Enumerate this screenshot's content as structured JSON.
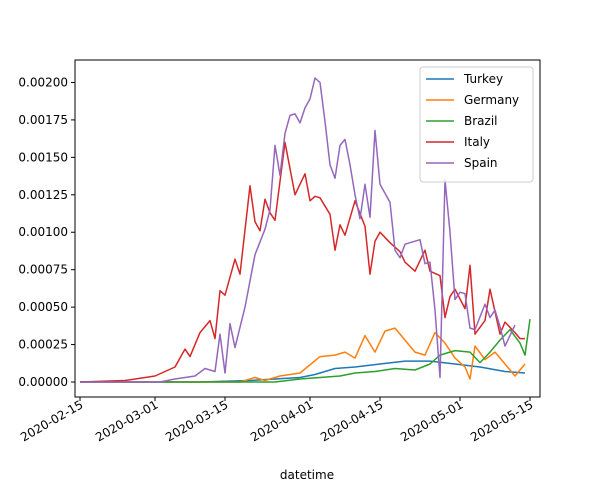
{
  "chart_data": {
    "type": "line",
    "title": "",
    "xlabel": "datetime",
    "ylabel": "",
    "x_range": [
      "2020-02-14",
      "2020-05-17"
    ],
    "ylim": [
      -0.0001,
      0.00215
    ],
    "x_ticks": [
      "2020-02-15",
      "2020-03-01",
      "2020-03-15",
      "2020-04-01",
      "2020-04-15",
      "2020-05-01",
      "2020-05-15"
    ],
    "y_ticks": [
      "0.00000",
      "0.00025",
      "0.00050",
      "0.00075",
      "0.00100",
      "0.00125",
      "0.00150",
      "0.00175",
      "0.00200"
    ],
    "grid": false,
    "legend_position": "top-right",
    "series": [
      {
        "name": "Turkey",
        "color": "#1f77b4",
        "points": [
          [
            "2020-02-15",
            0.0
          ],
          [
            "2020-03-10",
            0.0
          ],
          [
            "2020-03-20",
            1e-05
          ],
          [
            "2020-03-25",
            2e-05
          ],
          [
            "2020-03-30",
            3e-05
          ],
          [
            "2020-04-02",
            5e-05
          ],
          [
            "2020-04-06",
            9e-05
          ],
          [
            "2020-04-10",
            0.0001
          ],
          [
            "2020-04-15",
            0.00012
          ],
          [
            "2020-04-20",
            0.00014
          ],
          [
            "2020-04-25",
            0.00014
          ],
          [
            "2020-04-30",
            0.00012
          ],
          [
            "2020-05-05",
            0.0001
          ],
          [
            "2020-05-10",
            7e-05
          ],
          [
            "2020-05-14",
            6e-05
          ]
        ]
      },
      {
        "name": "Germany",
        "color": "#ff7f0e",
        "points": [
          [
            "2020-02-15",
            0.0
          ],
          [
            "2020-03-18",
            0.0
          ],
          [
            "2020-03-21",
            3e-05
          ],
          [
            "2020-03-23",
            1e-05
          ],
          [
            "2020-03-26",
            4e-05
          ],
          [
            "2020-03-30",
            6e-05
          ],
          [
            "2020-04-03",
            0.00017
          ],
          [
            "2020-04-06",
            0.00018
          ],
          [
            "2020-04-08",
            0.0002
          ],
          [
            "2020-04-10",
            0.00016
          ],
          [
            "2020-04-12",
            0.00031
          ],
          [
            "2020-04-14",
            0.0002
          ],
          [
            "2020-04-16",
            0.00034
          ],
          [
            "2020-04-18",
            0.00036
          ],
          [
            "2020-04-20",
            0.00028
          ],
          [
            "2020-04-22",
            0.0002
          ],
          [
            "2020-04-24",
            0.00018
          ],
          [
            "2020-04-26",
            0.00033
          ],
          [
            "2020-04-28",
            0.00026
          ],
          [
            "2020-04-30",
            0.00016
          ],
          [
            "2020-05-02",
            0.0001
          ],
          [
            "2020-05-03",
            2e-05
          ],
          [
            "2020-05-04",
            0.00024
          ],
          [
            "2020-05-06",
            0.00015
          ],
          [
            "2020-05-08",
            0.0002
          ],
          [
            "2020-05-10",
            0.00012
          ],
          [
            "2020-05-12",
            4e-05
          ],
          [
            "2020-05-14",
            0.00012
          ]
        ]
      },
      {
        "name": "Brazil",
        "color": "#2ca02c",
        "points": [
          [
            "2020-02-15",
            0.0
          ],
          [
            "2020-03-25",
            0.0
          ],
          [
            "2020-03-30",
            2e-05
          ],
          [
            "2020-04-03",
            3e-05
          ],
          [
            "2020-04-07",
            4e-05
          ],
          [
            "2020-04-10",
            6e-05
          ],
          [
            "2020-04-14",
            7e-05
          ],
          [
            "2020-04-18",
            9e-05
          ],
          [
            "2020-04-22",
            8e-05
          ],
          [
            "2020-04-25",
            0.00012
          ],
          [
            "2020-04-27",
            0.00018
          ],
          [
            "2020-04-30",
            0.00021
          ],
          [
            "2020-05-03",
            0.0002
          ],
          [
            "2020-05-05",
            0.00013
          ],
          [
            "2020-05-07",
            0.0002
          ],
          [
            "2020-05-09",
            0.00028
          ],
          [
            "2020-05-11",
            0.00035
          ],
          [
            "2020-05-13",
            0.00026
          ],
          [
            "2020-05-14",
            0.00018
          ],
          [
            "2020-05-15",
            0.00042
          ]
        ]
      },
      {
        "name": "Italy",
        "color": "#d62728",
        "points": [
          [
            "2020-02-15",
            0.0
          ],
          [
            "2020-02-24",
            1e-05
          ],
          [
            "2020-03-01",
            4e-05
          ],
          [
            "2020-03-05",
            0.0001
          ],
          [
            "2020-03-07",
            0.00022
          ],
          [
            "2020-03-08",
            0.00017
          ],
          [
            "2020-03-10",
            0.00033
          ],
          [
            "2020-03-12",
            0.00041
          ],
          [
            "2020-03-13",
            0.00029
          ],
          [
            "2020-03-14",
            0.00061
          ],
          [
            "2020-03-15",
            0.00058
          ],
          [
            "2020-03-17",
            0.00082
          ],
          [
            "2020-03-18",
            0.00072
          ],
          [
            "2020-03-20",
            0.00131
          ],
          [
            "2020-03-21",
            0.00107
          ],
          [
            "2020-03-22",
            0.00101
          ],
          [
            "2020-03-23",
            0.00122
          ],
          [
            "2020-03-24",
            0.00113
          ],
          [
            "2020-03-25",
            0.00108
          ],
          [
            "2020-03-27",
            0.0016
          ],
          [
            "2020-03-29",
            0.00125
          ],
          [
            "2020-03-31",
            0.00139
          ],
          [
            "2020-04-01",
            0.00121
          ],
          [
            "2020-04-02",
            0.00124
          ],
          [
            "2020-04-03",
            0.00123
          ],
          [
            "2020-04-05",
            0.00112
          ],
          [
            "2020-04-06",
            0.00088
          ],
          [
            "2020-04-07",
            0.00105
          ],
          [
            "2020-04-08",
            0.00098
          ],
          [
            "2020-04-10",
            0.00121
          ],
          [
            "2020-04-12",
            0.00104
          ],
          [
            "2020-04-13",
            0.00072
          ],
          [
            "2020-04-14",
            0.00094
          ],
          [
            "2020-04-15",
            0.001
          ],
          [
            "2020-04-17",
            0.00093
          ],
          [
            "2020-04-19",
            0.00087
          ],
          [
            "2020-04-20",
            0.0008
          ],
          [
            "2020-04-22",
            0.00074
          ],
          [
            "2020-04-24",
            0.00088
          ],
          [
            "2020-04-25",
            0.00074
          ],
          [
            "2020-04-27",
            0.00071
          ],
          [
            "2020-04-28",
            0.00043
          ],
          [
            "2020-04-29",
            0.00057
          ],
          [
            "2020-04-30",
            0.00062
          ],
          [
            "2020-05-02",
            0.00049
          ],
          [
            "2020-05-03",
            0.00078
          ],
          [
            "2020-05-04",
            0.00032
          ],
          [
            "2020-05-06",
            0.00041
          ],
          [
            "2020-05-07",
            0.00062
          ],
          [
            "2020-05-09",
            0.00032
          ],
          [
            "2020-05-10",
            0.0004
          ],
          [
            "2020-05-12",
            0.00033
          ],
          [
            "2020-05-13",
            0.00029
          ],
          [
            "2020-05-14",
            0.00029
          ]
        ]
      },
      {
        "name": "Spain",
        "color": "#9467bd",
        "points": [
          [
            "2020-02-15",
            0.0
          ],
          [
            "2020-03-02",
            0.0
          ],
          [
            "2020-03-05",
            2e-05
          ],
          [
            "2020-03-07",
            3e-05
          ],
          [
            "2020-03-09",
            4e-05
          ],
          [
            "2020-03-11",
            9e-05
          ],
          [
            "2020-03-13",
            7e-05
          ],
          [
            "2020-03-14",
            0.00032
          ],
          [
            "2020-03-15",
            6e-05
          ],
          [
            "2020-03-16",
            0.00039
          ],
          [
            "2020-03-17",
            0.00023
          ],
          [
            "2020-03-19",
            0.0005
          ],
          [
            "2020-03-21",
            0.00085
          ],
          [
            "2020-03-23",
            0.00102
          ],
          [
            "2020-03-24",
            0.00115
          ],
          [
            "2020-03-25",
            0.00158
          ],
          [
            "2020-03-26",
            0.00138
          ],
          [
            "2020-03-27",
            0.00166
          ],
          [
            "2020-03-28",
            0.00178
          ],
          [
            "2020-03-29",
            0.00179
          ],
          [
            "2020-03-30",
            0.00173
          ],
          [
            "2020-03-31",
            0.00183
          ],
          [
            "2020-04-01",
            0.00189
          ],
          [
            "2020-04-02",
            0.00203
          ],
          [
            "2020-04-03",
            0.002
          ],
          [
            "2020-04-04",
            0.00174
          ],
          [
            "2020-04-05",
            0.00145
          ],
          [
            "2020-04-06",
            0.00136
          ],
          [
            "2020-04-07",
            0.00158
          ],
          [
            "2020-04-08",
            0.00162
          ],
          [
            "2020-04-09",
            0.00145
          ],
          [
            "2020-04-10",
            0.00125
          ],
          [
            "2020-04-11",
            0.00109
          ],
          [
            "2020-04-12",
            0.00132
          ],
          [
            "2020-04-13",
            0.0011
          ],
          [
            "2020-04-14",
            0.00168
          ],
          [
            "2020-04-15",
            0.00132
          ],
          [
            "2020-04-16",
            0.00126
          ],
          [
            "2020-04-17",
            0.0012
          ],
          [
            "2020-04-18",
            0.00088
          ],
          [
            "2020-04-19",
            0.00083
          ],
          [
            "2020-04-20",
            0.00092
          ],
          [
            "2020-04-21",
            0.00093
          ],
          [
            "2020-04-23",
            0.00095
          ],
          [
            "2020-04-24",
            0.00079
          ],
          [
            "2020-04-25",
            0.0008
          ],
          [
            "2020-04-26",
            0.00048
          ],
          [
            "2020-04-27",
            3e-05
          ],
          [
            "2020-04-28",
            0.00135
          ],
          [
            "2020-04-29",
            0.001
          ],
          [
            "2020-04-30",
            0.00055
          ],
          [
            "2020-05-01",
            0.0006
          ],
          [
            "2020-05-02",
            0.00059
          ],
          [
            "2020-05-03",
            0.00036
          ],
          [
            "2020-05-04",
            0.00035
          ],
          [
            "2020-05-06",
            0.00052
          ],
          [
            "2020-05-07",
            0.00043
          ],
          [
            "2020-05-08",
            0.00048
          ],
          [
            "2020-05-09",
            0.00037
          ],
          [
            "2020-05-10",
            0.00024
          ],
          [
            "2020-05-12",
            0.00038
          ]
        ]
      }
    ]
  }
}
